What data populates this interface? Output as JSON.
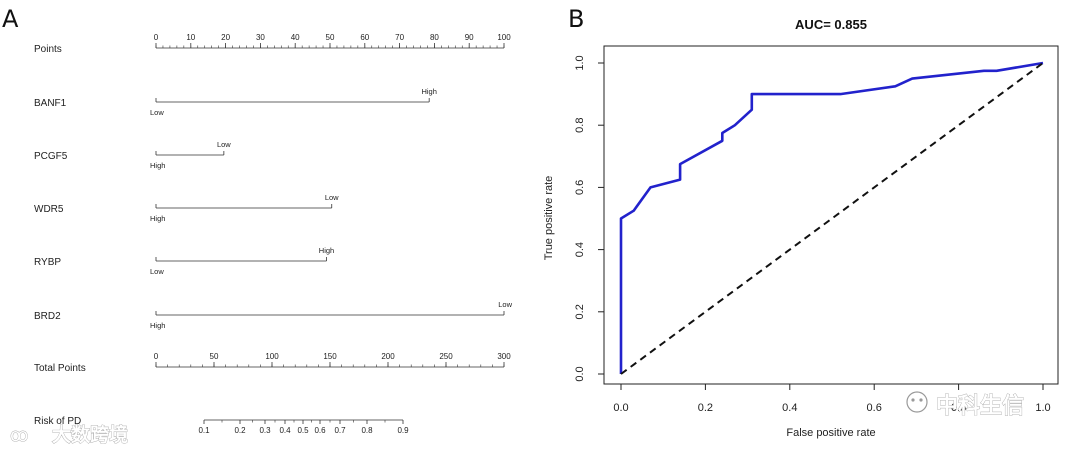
{
  "panel_a": {
    "letter": "A",
    "rows": [
      {
        "label": "Points",
        "kind": "axis",
        "ticks": [
          0,
          10,
          20,
          30,
          40,
          50,
          60,
          70,
          80,
          90,
          100
        ],
        "min": 0,
        "max": 100
      },
      {
        "label": "BANF1",
        "kind": "factor",
        "start": 0,
        "end": 78.5,
        "start_level": "Low",
        "end_level": "High",
        "start_below": true
      },
      {
        "label": "PCGF5",
        "kind": "factor",
        "start": 0,
        "end": 19.5,
        "start_level": "High",
        "end_level": "Low",
        "start_below": true
      },
      {
        "label": "WDR5",
        "kind": "factor",
        "start": 0,
        "end": 50.5,
        "start_level": "High",
        "end_level": "Low",
        "start_below": true
      },
      {
        "label": "RYBP",
        "kind": "factor",
        "start": 0,
        "end": 49,
        "start_level": "Low",
        "end_level": "High",
        "start_below": true
      },
      {
        "label": "BRD2",
        "kind": "factor",
        "start": 0,
        "end": 100,
        "start_level": "High",
        "end_level": "Low",
        "start_below": true
      },
      {
        "label": "Total Points",
        "kind": "axis",
        "ticks": [
          0,
          50,
          100,
          150,
          200,
          250,
          300
        ],
        "min": 0,
        "max": 300
      },
      {
        "label": "Risk of PD",
        "kind": "risk",
        "ticks": [
          "0.1",
          "0.2",
          "0.3",
          "0.4",
          "0.5",
          "0.6",
          "0.7",
          "0.8",
          "0.9"
        ]
      }
    ]
  },
  "panel_b": {
    "letter": "B"
  },
  "chart_data": {
    "type": "line",
    "title": "AUC= 0.855",
    "xlabel": "False positive rate",
    "ylabel": "True positive rate",
    "xlim": [
      0,
      1
    ],
    "ylim": [
      0,
      1
    ],
    "xticks": [
      "0.0",
      "0.2",
      "0.4",
      "0.6",
      "0.8",
      "1.0"
    ],
    "yticks": [
      "0.0",
      "0.2",
      "0.4",
      "0.6",
      "0.8",
      "1.0"
    ],
    "series": [
      {
        "name": "ROC",
        "color": "#2222cc",
        "x": [
          0,
          0,
          0.03,
          0.07,
          0.14,
          0.14,
          0.24,
          0.24,
          0.27,
          0.31,
          0.31,
          0.52,
          0.65,
          0.69,
          0.86,
          0.89,
          1.0
        ],
        "y": [
          0,
          0.5,
          0.525,
          0.6,
          0.625,
          0.675,
          0.75,
          0.775,
          0.8,
          0.85,
          0.9,
          0.9,
          0.925,
          0.95,
          0.975,
          0.975,
          1.0
        ]
      },
      {
        "name": "Reference",
        "color": "#111111",
        "style": "dashed",
        "x": [
          0,
          1
        ],
        "y": [
          0,
          1
        ]
      }
    ]
  },
  "watermarks": {
    "left": "大数跨境",
    "right": "中科生信"
  }
}
